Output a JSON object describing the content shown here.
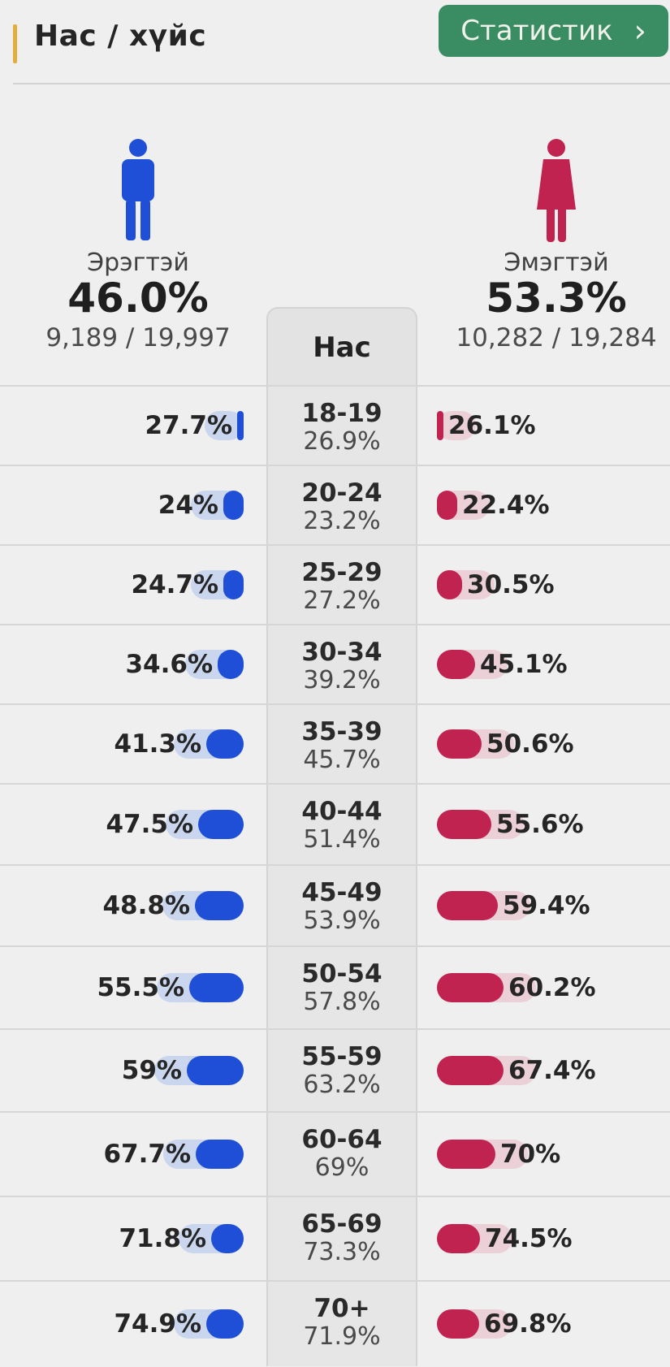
{
  "header": {
    "title": "Нас / хүйс",
    "stat_button": "Статистик",
    "stat_chevron": "›"
  },
  "male": {
    "label": "Эрэгтэй",
    "percent": "46.0%",
    "count": "9,189 / 19,997",
    "color": "#1f4fd6"
  },
  "female": {
    "label": "Эмэгтэй",
    "percent": "53.3%",
    "count": "10,282 / 19,284",
    "color": "#c0234f"
  },
  "age_header": "Нас",
  "rows": [
    {
      "age": "18-19",
      "total": "26.9%",
      "male": "27.7%",
      "female": "26.1%",
      "male_value": 27.7,
      "female_value": 26.1
    },
    {
      "age": "20-24",
      "total": "23.2%",
      "male": "24%",
      "female": "22.4%",
      "male_value": 24,
      "female_value": 22.4
    },
    {
      "age": "25-29",
      "total": "27.2%",
      "male": "24.7%",
      "female": "30.5%",
      "male_value": 24.7,
      "female_value": 30.5
    },
    {
      "age": "30-34",
      "total": "39.2%",
      "male": "34.6%",
      "female": "45.1%",
      "male_value": 34.6,
      "female_value": 45.1
    },
    {
      "age": "35-39",
      "total": "45.7%",
      "male": "41.3%",
      "female": "50.6%",
      "male_value": 41.3,
      "female_value": 50.6
    },
    {
      "age": "40-44",
      "total": "51.4%",
      "male": "47.5%",
      "female": "55.6%",
      "male_value": 47.5,
      "female_value": 55.6
    },
    {
      "age": "45-49",
      "total": "53.9%",
      "male": "48.8%",
      "female": "59.4%",
      "male_value": 48.8,
      "female_value": 59.4
    },
    {
      "age": "50-54",
      "total": "57.8%",
      "male": "55.5%",
      "female": "60.2%",
      "male_value": 55.5,
      "female_value": 60.2
    },
    {
      "age": "55-59",
      "total": "63.2%",
      "male": "59%",
      "female": "67.4%",
      "male_value": 59,
      "female_value": 67.4
    },
    {
      "age": "60-64",
      "total": "69%",
      "male": "67.7%",
      "female": "70%",
      "male_value": 67.7,
      "female_value": 70
    },
    {
      "age": "65-69",
      "total": "73.3%",
      "male": "71.8%",
      "female": "74.5%",
      "male_value": 71.8,
      "female_value": 74.5
    },
    {
      "age": "70+",
      "total": "71.9%",
      "male": "74.9%",
      "female": "69.8%",
      "male_value": 74.9,
      "female_value": 69.8
    }
  ]
}
